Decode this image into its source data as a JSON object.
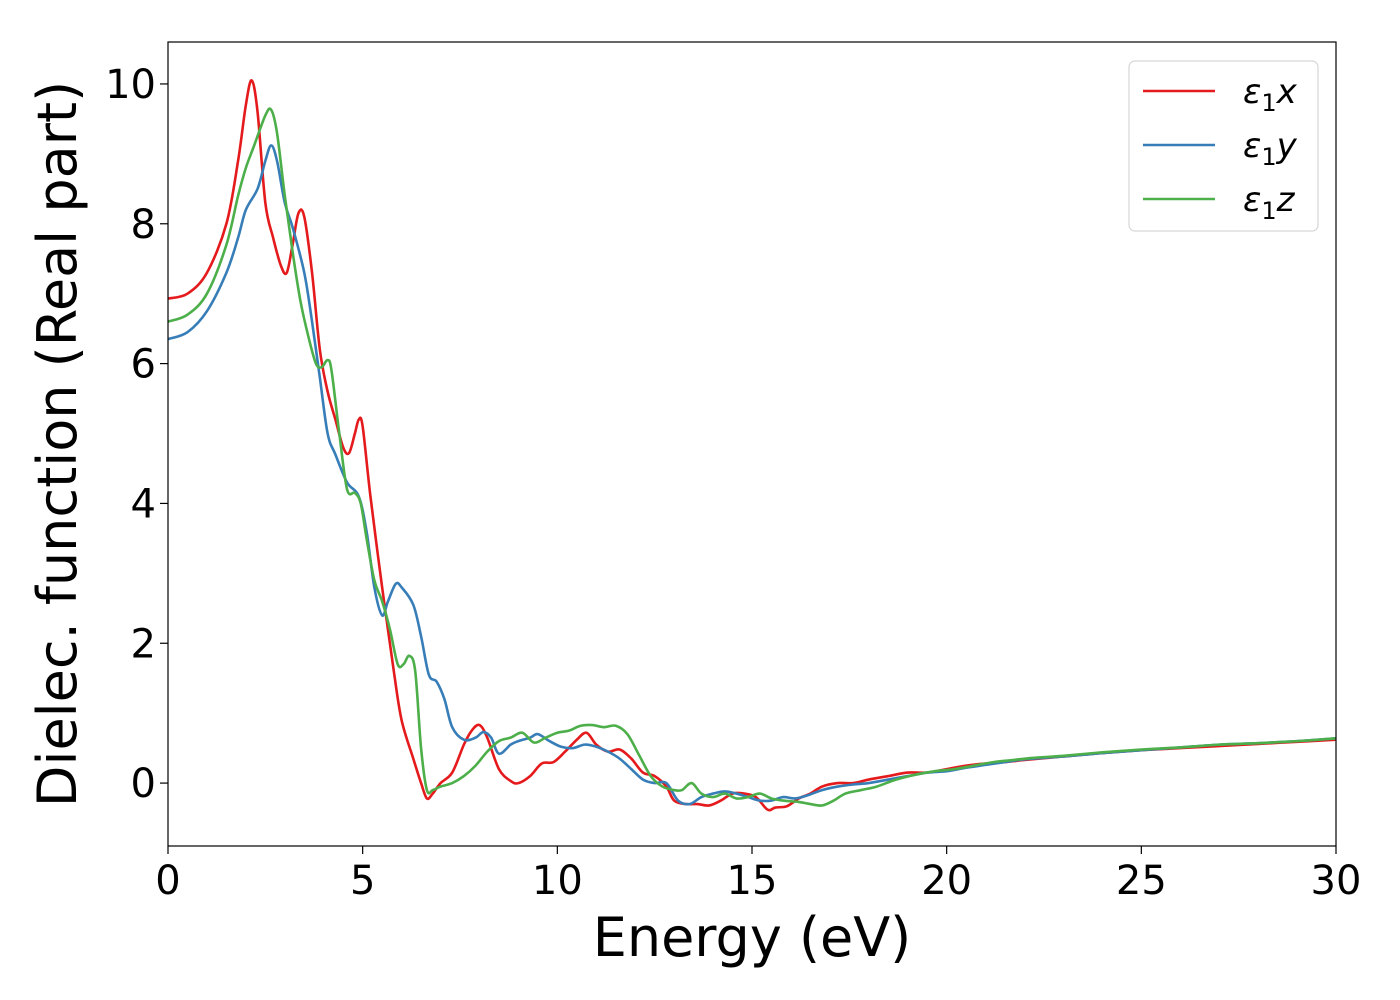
{
  "chart_data": {
    "type": "line",
    "title": "",
    "xlabel": "Energy (eV)",
    "ylabel": "Dielec. function (Real part)",
    "xlim": [
      0,
      30
    ],
    "ylim": [
      -0.9,
      10.6
    ],
    "xticks": [
      0,
      5,
      10,
      15,
      20,
      25,
      30
    ],
    "yticks": [
      0,
      2,
      4,
      6,
      8,
      10
    ],
    "grid": false,
    "legend": {
      "position": "top-right"
    },
    "series": [
      {
        "name": "ε₁x",
        "legend_base": "ε",
        "legend_sub": "1",
        "legend_var": "x",
        "color": "#e41a1c",
        "points": [
          [
            0,
            6.93
          ],
          [
            0.5,
            7.0
          ],
          [
            1.0,
            7.3
          ],
          [
            1.5,
            8.0
          ],
          [
            1.8,
            8.9
          ],
          [
            2.0,
            9.7
          ],
          [
            2.15,
            10.05
          ],
          [
            2.3,
            9.6
          ],
          [
            2.5,
            8.3
          ],
          [
            2.7,
            7.8
          ],
          [
            2.9,
            7.4
          ],
          [
            3.05,
            7.3
          ],
          [
            3.2,
            7.7
          ],
          [
            3.35,
            8.15
          ],
          [
            3.5,
            8.1
          ],
          [
            3.7,
            7.3
          ],
          [
            3.9,
            6.2
          ],
          [
            4.1,
            5.6
          ],
          [
            4.3,
            5.2
          ],
          [
            4.5,
            4.8
          ],
          [
            4.65,
            4.72
          ],
          [
            4.8,
            5.0
          ],
          [
            4.9,
            5.2
          ],
          [
            5.0,
            5.1
          ],
          [
            5.2,
            4.1
          ],
          [
            5.5,
            2.8
          ],
          [
            5.8,
            1.6
          ],
          [
            6.0,
            0.9
          ],
          [
            6.3,
            0.35
          ],
          [
            6.5,
            0.0
          ],
          [
            6.65,
            -0.22
          ],
          [
            6.8,
            -0.15
          ],
          [
            7.0,
            0.0
          ],
          [
            7.3,
            0.15
          ],
          [
            7.6,
            0.55
          ],
          [
            7.8,
            0.75
          ],
          [
            8.0,
            0.83
          ],
          [
            8.2,
            0.65
          ],
          [
            8.5,
            0.2
          ],
          [
            8.8,
            0.03
          ],
          [
            9.0,
            0.0
          ],
          [
            9.3,
            0.1
          ],
          [
            9.6,
            0.28
          ],
          [
            9.9,
            0.3
          ],
          [
            10.2,
            0.45
          ],
          [
            10.5,
            0.62
          ],
          [
            10.75,
            0.72
          ],
          [
            11.0,
            0.55
          ],
          [
            11.3,
            0.45
          ],
          [
            11.6,
            0.48
          ],
          [
            11.9,
            0.35
          ],
          [
            12.2,
            0.15
          ],
          [
            12.5,
            0.1
          ],
          [
            12.8,
            -0.05
          ],
          [
            13.0,
            -0.25
          ],
          [
            13.3,
            -0.3
          ],
          [
            13.6,
            -0.3
          ],
          [
            13.9,
            -0.32
          ],
          [
            14.2,
            -0.25
          ],
          [
            14.5,
            -0.15
          ],
          [
            14.8,
            -0.15
          ],
          [
            15.1,
            -0.2
          ],
          [
            15.4,
            -0.38
          ],
          [
            15.6,
            -0.35
          ],
          [
            15.9,
            -0.33
          ],
          [
            16.2,
            -0.22
          ],
          [
            16.5,
            -0.15
          ],
          [
            16.8,
            -0.05
          ],
          [
            17.2,
            0.0
          ],
          [
            17.6,
            0.0
          ],
          [
            18.0,
            0.05
          ],
          [
            18.5,
            0.1
          ],
          [
            19.0,
            0.15
          ],
          [
            19.5,
            0.15
          ],
          [
            20.0,
            0.2
          ],
          [
            20.5,
            0.25
          ],
          [
            21.0,
            0.28
          ],
          [
            21.5,
            0.3
          ],
          [
            22.0,
            0.33
          ],
          [
            23.0,
            0.38
          ],
          [
            24.0,
            0.43
          ],
          [
            25.0,
            0.47
          ],
          [
            26.0,
            0.5
          ],
          [
            27.0,
            0.53
          ],
          [
            28.0,
            0.56
          ],
          [
            29.0,
            0.59
          ],
          [
            30.0,
            0.62
          ]
        ]
      },
      {
        "name": "ε₁y",
        "legend_base": "ε",
        "legend_sub": "1",
        "legend_var": "y",
        "color": "#377eb8",
        "points": [
          [
            0,
            6.35
          ],
          [
            0.5,
            6.45
          ],
          [
            1.0,
            6.75
          ],
          [
            1.5,
            7.3
          ],
          [
            1.8,
            7.8
          ],
          [
            2.0,
            8.2
          ],
          [
            2.3,
            8.5
          ],
          [
            2.5,
            8.9
          ],
          [
            2.65,
            9.12
          ],
          [
            2.8,
            8.9
          ],
          [
            3.0,
            8.3
          ],
          [
            3.2,
            7.95
          ],
          [
            3.5,
            7.3
          ],
          [
            3.7,
            6.6
          ],
          [
            3.9,
            5.8
          ],
          [
            4.1,
            5.0
          ],
          [
            4.3,
            4.7
          ],
          [
            4.6,
            4.3
          ],
          [
            4.9,
            4.1
          ],
          [
            5.1,
            3.6
          ],
          [
            5.3,
            2.8
          ],
          [
            5.5,
            2.4
          ],
          [
            5.65,
            2.6
          ],
          [
            5.85,
            2.85
          ],
          [
            6.0,
            2.8
          ],
          [
            6.3,
            2.55
          ],
          [
            6.5,
            2.1
          ],
          [
            6.7,
            1.55
          ],
          [
            6.9,
            1.45
          ],
          [
            7.1,
            1.2
          ],
          [
            7.3,
            0.8
          ],
          [
            7.6,
            0.62
          ],
          [
            7.9,
            0.65
          ],
          [
            8.1,
            0.73
          ],
          [
            8.3,
            0.65
          ],
          [
            8.5,
            0.42
          ],
          [
            8.8,
            0.55
          ],
          [
            9.0,
            0.6
          ],
          [
            9.3,
            0.65
          ],
          [
            9.5,
            0.7
          ],
          [
            9.8,
            0.6
          ],
          [
            10.1,
            0.52
          ],
          [
            10.4,
            0.5
          ],
          [
            10.7,
            0.55
          ],
          [
            11.0,
            0.52
          ],
          [
            11.3,
            0.45
          ],
          [
            11.6,
            0.35
          ],
          [
            11.9,
            0.2
          ],
          [
            12.2,
            0.05
          ],
          [
            12.5,
            0.0
          ],
          [
            12.8,
            0.0
          ],
          [
            13.1,
            -0.25
          ],
          [
            13.4,
            -0.3
          ],
          [
            13.7,
            -0.2
          ],
          [
            14.0,
            -0.15
          ],
          [
            14.3,
            -0.12
          ],
          [
            14.6,
            -0.15
          ],
          [
            14.9,
            -0.2
          ],
          [
            15.2,
            -0.25
          ],
          [
            15.5,
            -0.25
          ],
          [
            15.8,
            -0.2
          ],
          [
            16.1,
            -0.22
          ],
          [
            16.4,
            -0.18
          ],
          [
            16.8,
            -0.1
          ],
          [
            17.2,
            -0.05
          ],
          [
            17.6,
            -0.02
          ],
          [
            18.0,
            0.0
          ],
          [
            18.5,
            0.05
          ],
          [
            19.0,
            0.1
          ],
          [
            19.5,
            0.15
          ],
          [
            20.0,
            0.17
          ],
          [
            20.5,
            0.22
          ],
          [
            21.0,
            0.26
          ],
          [
            21.5,
            0.3
          ],
          [
            22.0,
            0.34
          ],
          [
            23.0,
            0.38
          ],
          [
            24.0,
            0.43
          ],
          [
            25.0,
            0.47
          ],
          [
            26.0,
            0.51
          ],
          [
            27.0,
            0.55
          ],
          [
            28.0,
            0.57
          ],
          [
            29.0,
            0.6
          ],
          [
            30.0,
            0.64
          ]
        ]
      },
      {
        "name": "ε₁z",
        "legend_base": "ε",
        "legend_sub": "1",
        "legend_var": "z",
        "color": "#4daf4a",
        "points": [
          [
            0,
            6.6
          ],
          [
            0.5,
            6.7
          ],
          [
            1.0,
            7.0
          ],
          [
            1.5,
            7.7
          ],
          [
            1.8,
            8.4
          ],
          [
            2.0,
            8.8
          ],
          [
            2.2,
            9.1
          ],
          [
            2.5,
            9.55
          ],
          [
            2.65,
            9.63
          ],
          [
            2.8,
            9.3
          ],
          [
            3.0,
            8.4
          ],
          [
            3.2,
            7.6
          ],
          [
            3.4,
            6.9
          ],
          [
            3.6,
            6.4
          ],
          [
            3.8,
            6.0
          ],
          [
            3.95,
            5.95
          ],
          [
            4.1,
            6.05
          ],
          [
            4.2,
            5.9
          ],
          [
            4.4,
            5.0
          ],
          [
            4.6,
            4.2
          ],
          [
            4.8,
            4.15
          ],
          [
            4.95,
            4.0
          ],
          [
            5.1,
            3.5
          ],
          [
            5.3,
            2.9
          ],
          [
            5.5,
            2.6
          ],
          [
            5.7,
            2.2
          ],
          [
            5.9,
            1.7
          ],
          [
            6.05,
            1.7
          ],
          [
            6.2,
            1.82
          ],
          [
            6.35,
            1.6
          ],
          [
            6.5,
            0.5
          ],
          [
            6.65,
            -0.1
          ],
          [
            6.8,
            -0.1
          ],
          [
            7.0,
            -0.05
          ],
          [
            7.3,
            0.0
          ],
          [
            7.6,
            0.1
          ],
          [
            7.9,
            0.25
          ],
          [
            8.2,
            0.45
          ],
          [
            8.5,
            0.6
          ],
          [
            8.8,
            0.65
          ],
          [
            9.1,
            0.72
          ],
          [
            9.4,
            0.58
          ],
          [
            9.7,
            0.65
          ],
          [
            10.0,
            0.72
          ],
          [
            10.3,
            0.75
          ],
          [
            10.6,
            0.82
          ],
          [
            10.9,
            0.83
          ],
          [
            11.2,
            0.8
          ],
          [
            11.5,
            0.82
          ],
          [
            11.8,
            0.7
          ],
          [
            12.1,
            0.4
          ],
          [
            12.4,
            0.1
          ],
          [
            12.7,
            -0.05
          ],
          [
            13.0,
            -0.1
          ],
          [
            13.2,
            -0.1
          ],
          [
            13.45,
            0.0
          ],
          [
            13.7,
            -0.15
          ],
          [
            14.0,
            -0.2
          ],
          [
            14.3,
            -0.15
          ],
          [
            14.6,
            -0.22
          ],
          [
            14.9,
            -0.2
          ],
          [
            15.2,
            -0.15
          ],
          [
            15.5,
            -0.22
          ],
          [
            15.8,
            -0.25
          ],
          [
            16.2,
            -0.27
          ],
          [
            16.5,
            -0.3
          ],
          [
            16.8,
            -0.32
          ],
          [
            17.1,
            -0.25
          ],
          [
            17.4,
            -0.15
          ],
          [
            17.8,
            -0.1
          ],
          [
            18.2,
            -0.05
          ],
          [
            18.7,
            0.05
          ],
          [
            19.2,
            0.12
          ],
          [
            19.7,
            0.17
          ],
          [
            20.2,
            0.2
          ],
          [
            20.7,
            0.25
          ],
          [
            21.2,
            0.3
          ],
          [
            21.7,
            0.33
          ],
          [
            22.2,
            0.36
          ],
          [
            23.0,
            0.39
          ],
          [
            24.0,
            0.44
          ],
          [
            25.0,
            0.48
          ],
          [
            26.0,
            0.51
          ],
          [
            27.0,
            0.55
          ],
          [
            28.0,
            0.57
          ],
          [
            29.0,
            0.6
          ],
          [
            30.0,
            0.64
          ]
        ]
      }
    ]
  }
}
